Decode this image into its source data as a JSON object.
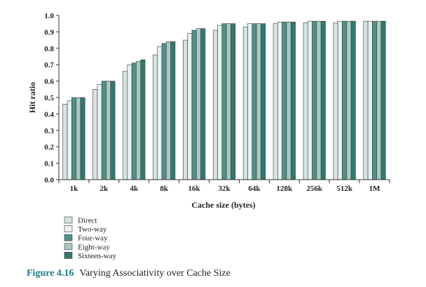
{
  "chart_data": {
    "type": "bar",
    "title": "",
    "xlabel": "Cache size (bytes)",
    "ylabel": "Hit ratio",
    "ylim": [
      0.0,
      1.0
    ],
    "yticks": [
      "0.0",
      "0.1",
      "0.2",
      "0.3",
      "0.4",
      "0.5",
      "0.6",
      "0.7",
      "0.8",
      "0.9",
      "1.0"
    ],
    "categories": [
      "1k",
      "2k",
      "4k",
      "8k",
      "16k",
      "32k",
      "64k",
      "128k",
      "256k",
      "512k",
      "1M"
    ],
    "grid": false,
    "legend_position": "bottom-left",
    "series": [
      {
        "name": "Direct",
        "color": "#d7e4e1",
        "values": [
          0.46,
          0.55,
          0.66,
          0.76,
          0.85,
          0.91,
          0.93,
          0.95,
          0.955,
          0.955,
          0.965
        ]
      },
      {
        "name": "Two-way",
        "color": "#e9f2f0",
        "values": [
          0.48,
          0.58,
          0.7,
          0.81,
          0.89,
          0.94,
          0.95,
          0.96,
          0.965,
          0.965,
          0.965
        ]
      },
      {
        "name": "Four-way",
        "color": "#4f9189",
        "values": [
          0.5,
          0.6,
          0.71,
          0.83,
          0.91,
          0.95,
          0.95,
          0.96,
          0.965,
          0.965,
          0.965
        ]
      },
      {
        "name": "Eight-way",
        "color": "#a7c9c2",
        "values": [
          0.5,
          0.6,
          0.72,
          0.84,
          0.92,
          0.95,
          0.95,
          0.96,
          0.965,
          0.965,
          0.965
        ]
      },
      {
        "name": "Sixteen-way",
        "color": "#2e7a71",
        "values": [
          0.5,
          0.6,
          0.73,
          0.84,
          0.92,
          0.95,
          0.95,
          0.96,
          0.965,
          0.965,
          0.965
        ]
      }
    ]
  },
  "caption": {
    "number": "Figure 4.16",
    "text": "Varying Associativity over Cache Size"
  }
}
